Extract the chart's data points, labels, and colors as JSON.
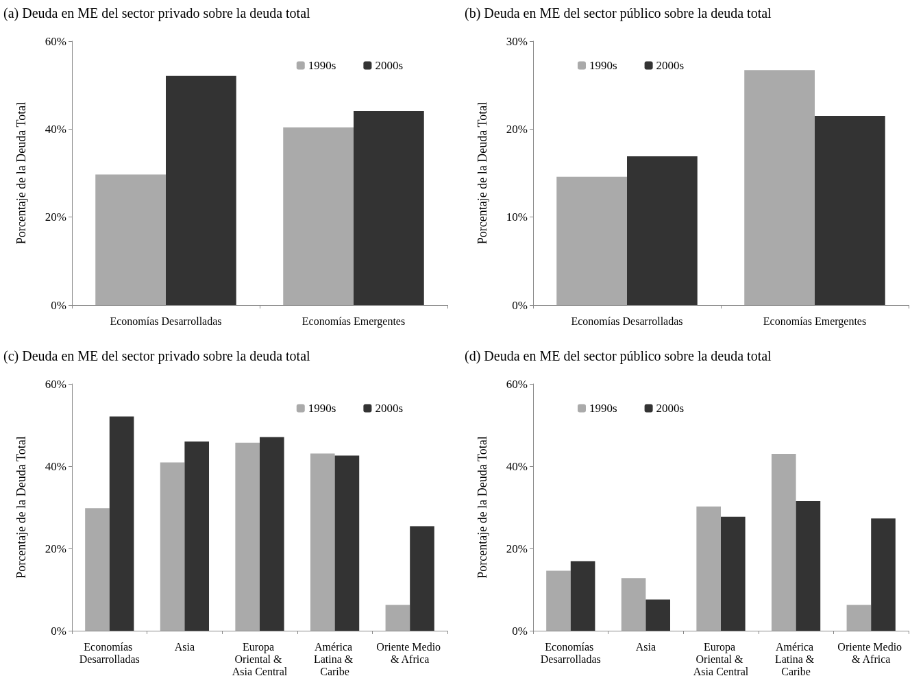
{
  "chart_data": [
    {
      "type": "bar",
      "title": "(a) Deuda en ME del sector privado sobre la deuda total",
      "ylabel": "Porcentaje de la Deuda Total",
      "categories": [
        "Economías Desarrolladas",
        "Economías Emergentes"
      ],
      "series": [
        {
          "name": "1990s",
          "color": "#aaaaaa",
          "values": [
            29.7,
            40.4
          ]
        },
        {
          "name": "2000s",
          "color": "#333333",
          "values": [
            52.1,
            44.1
          ]
        }
      ],
      "ylim": [
        0,
        60
      ],
      "yticks": [
        {
          "value": 0,
          "label": "0%"
        },
        {
          "value": 20,
          "label": "20%"
        },
        {
          "value": 40,
          "label": "40%"
        },
        {
          "value": 60,
          "label": "60%"
        }
      ],
      "legend": "top right",
      "grid": false
    },
    {
      "type": "bar",
      "title": "(b) Deuda en ME del sector público sobre la deuda total",
      "ylabel": "Porcentaje de la Deuda Total",
      "categories": [
        "Economías Desarrolladas",
        "Economías Emergentes"
      ],
      "series": [
        {
          "name": "1990s",
          "color": "#aaaaaa",
          "values": [
            14.6,
            26.7
          ]
        },
        {
          "name": "2000s",
          "color": "#333333",
          "values": [
            16.9,
            21.5
          ]
        }
      ],
      "ylim": [
        0,
        30
      ],
      "yticks": [
        {
          "value": 0,
          "label": "0%"
        },
        {
          "value": 10,
          "label": "10%"
        },
        {
          "value": 20,
          "label": "20%"
        },
        {
          "value": 30,
          "label": "30%"
        }
      ],
      "legend": "top left",
      "grid": false
    },
    {
      "type": "bar",
      "title": "(c) Deuda en ME del sector privado sobre la deuda total",
      "ylabel": "Porcentaje de la Deuda Total",
      "categories": [
        "Economías Desarrolladas",
        "Asia",
        "Europa Oriental & Asia Central",
        "América Latina & Caribe",
        "Oriente Medio & Africa"
      ],
      "series": [
        {
          "name": "1990s",
          "color": "#aaaaaa",
          "values": [
            29.8,
            40.9,
            45.7,
            43.1,
            6.3
          ]
        },
        {
          "name": "2000s",
          "color": "#333333",
          "values": [
            52.1,
            46.0,
            47.1,
            42.6,
            25.4
          ]
        }
      ],
      "ylim": [
        0,
        60
      ],
      "yticks": [
        {
          "value": 0,
          "label": "0%"
        },
        {
          "value": 20,
          "label": "20%"
        },
        {
          "value": 40,
          "label": "40%"
        },
        {
          "value": 60,
          "label": "60%"
        }
      ],
      "legend": "top right",
      "grid": false
    },
    {
      "type": "bar",
      "title": "(d) Deuda en ME del sector público sobre la deuda total",
      "ylabel": "Porcentaje de la Deuda Total",
      "categories": [
        "Economías Desarrolladas",
        "Asia",
        "Europa Oriental & Asia Central",
        "América Latina & Caribe",
        "Oriente Medio & Africa"
      ],
      "series": [
        {
          "name": "1990s",
          "color": "#aaaaaa",
          "values": [
            14.6,
            12.8,
            30.2,
            43.0,
            6.3
          ]
        },
        {
          "name": "2000s",
          "color": "#333333",
          "values": [
            16.9,
            7.6,
            27.7,
            31.5,
            27.3
          ]
        }
      ],
      "ylim": [
        0,
        60
      ],
      "yticks": [
        {
          "value": 0,
          "label": "0%"
        },
        {
          "value": 20,
          "label": "20%"
        },
        {
          "value": 40,
          "label": "40%"
        },
        {
          "value": 60,
          "label": "60%"
        }
      ],
      "legend": "top left",
      "grid": false
    }
  ]
}
